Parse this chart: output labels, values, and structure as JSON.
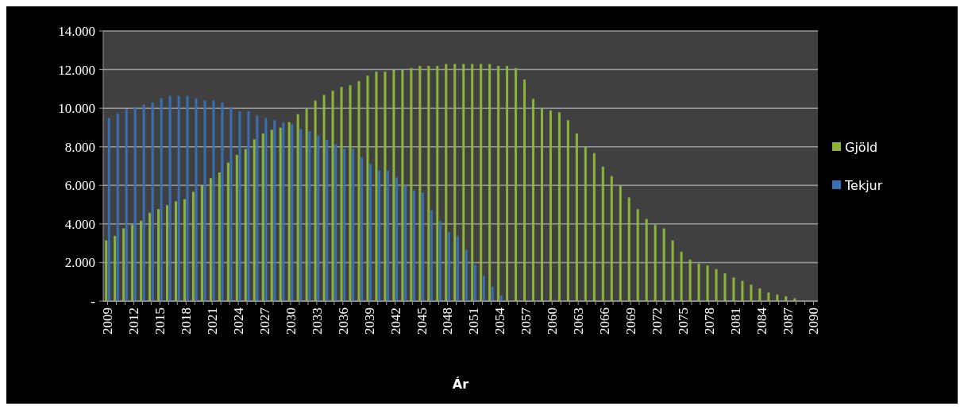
{
  "chart_data": {
    "type": "bar",
    "xlabel": "Ár",
    "categories": [
      "2009",
      null,
      null,
      "2012",
      null,
      null,
      "2015",
      null,
      null,
      "2018",
      null,
      null,
      "2021",
      null,
      null,
      "2024",
      null,
      null,
      "2027",
      null,
      null,
      "2030",
      null,
      null,
      "2033",
      null,
      null,
      "2036",
      null,
      null,
      "2039",
      null,
      null,
      "2042",
      null,
      null,
      "2045",
      null,
      null,
      "2048",
      null,
      null,
      "2051",
      null,
      null,
      "2054",
      null,
      null,
      "2057",
      null,
      null,
      "2060",
      null,
      null,
      "2063",
      null,
      null,
      "2066",
      null,
      null,
      "2069",
      null,
      null,
      "2072",
      null,
      null,
      "2075",
      null,
      null,
      "2078",
      null,
      null,
      "2081",
      null,
      null,
      "2084",
      null,
      null,
      "2087",
      null,
      null,
      "2090"
    ],
    "series": [
      {
        "name": "Gjöld",
        "color": "#8db33a",
        "values": [
          3150,
          3380,
          3770,
          3970,
          4170,
          4580,
          4770,
          4970,
          5170,
          5280,
          5670,
          5970,
          6370,
          6670,
          7180,
          7580,
          7880,
          8390,
          8690,
          8880,
          8990,
          9280,
          9690,
          9980,
          10390,
          10690,
          10900,
          11100,
          11190,
          11400,
          11690,
          11890,
          11890,
          11990,
          11990,
          12080,
          12190,
          12190,
          12190,
          12290,
          12290,
          12290,
          12290,
          12290,
          12290,
          12190,
          12190,
          12080,
          11480,
          10480,
          9980,
          9880,
          9780,
          9380,
          8690,
          7990,
          7670,
          6970,
          6480,
          5970,
          5370,
          4770,
          4260,
          3960,
          3770,
          3150,
          2560,
          2150,
          1950,
          1850,
          1660,
          1440,
          1230,
          1050,
          850,
          660,
          440,
          340,
          250,
          150,
          null,
          0
        ]
      },
      {
        "name": "Tekjur",
        "color": "#3a6fb5",
        "values": [
          9490,
          9730,
          9960,
          10060,
          10190,
          10290,
          10520,
          10630,
          10630,
          10630,
          10520,
          10400,
          10400,
          10290,
          10060,
          9840,
          9840,
          9620,
          9490,
          9380,
          9260,
          9170,
          8930,
          8810,
          8590,
          8360,
          8120,
          7900,
          7900,
          7450,
          7110,
          6770,
          6770,
          6410,
          5990,
          5740,
          5630,
          4710,
          4150,
          3580,
          3360,
          2670,
          1900,
          1320,
          740,
          290,
          null,
          0,
          0,
          0,
          0,
          0,
          0,
          0,
          0,
          0,
          0,
          0,
          0,
          0,
          0,
          0,
          0,
          0,
          0,
          0,
          0,
          0,
          0,
          0,
          0,
          0,
          0,
          0,
          0,
          0,
          0,
          0,
          0,
          0,
          0,
          0
        ]
      }
    ],
    "ylim": [
      0,
      14000
    ],
    "yticks": [
      {
        "value": 0,
        "label": "-"
      },
      {
        "value": 2000,
        "label": "2.000"
      },
      {
        "value": 4000,
        "label": "4.000"
      },
      {
        "value": 6000,
        "label": "6.000"
      },
      {
        "value": 8000,
        "label": "8.000"
      },
      {
        "value": 10000,
        "label": "10.000"
      },
      {
        "value": 12000,
        "label": "12.000"
      },
      {
        "value": 14000,
        "label": "14.000"
      }
    ],
    "grid": "y",
    "legend": "right"
  }
}
